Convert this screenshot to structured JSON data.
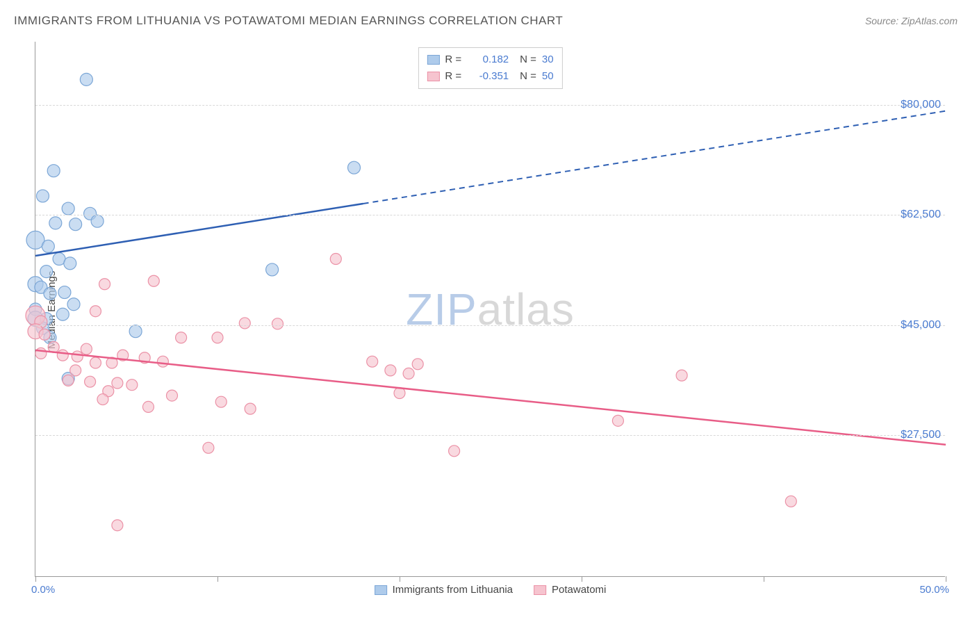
{
  "title": "IMMIGRANTS FROM LITHUANIA VS POTAWATOMI MEDIAN EARNINGS CORRELATION CHART",
  "source": "Source: ZipAtlas.com",
  "y_axis_title": "Median Earnings",
  "watermark_zip": "ZIP",
  "watermark_atlas": "atlas",
  "chart": {
    "type": "scatter",
    "xlim": [
      0,
      50
    ],
    "ylim": [
      5000,
      90000
    ],
    "x_tick_positions": [
      0,
      10,
      20,
      30,
      40,
      50
    ],
    "y_ticks": [
      {
        "v": 27500,
        "label": "$27,500"
      },
      {
        "v": 45000,
        "label": "$45,000"
      },
      {
        "v": 62500,
        "label": "$62,500"
      },
      {
        "v": 80000,
        "label": "$80,000"
      }
    ],
    "x_start_label": "0.0%",
    "x_end_label": "50.0%",
    "background_color": "#ffffff",
    "grid_color": "#d8d8d8",
    "series": [
      {
        "name": "Immigrants from Lithuania",
        "color_fill": "#aecbeb",
        "color_stroke": "#7ba6d6",
        "trend_color": "#2e5fb3",
        "R": "0.182",
        "N": "30",
        "trend": {
          "x1": 0,
          "y1": 56000,
          "x2": 50,
          "y2": 79000,
          "solid_until_x": 18
        },
        "points": [
          {
            "x": 2.8,
            "y": 84000,
            "r": 9
          },
          {
            "x": 1.0,
            "y": 69500,
            "r": 9
          },
          {
            "x": 0.4,
            "y": 65500,
            "r": 9
          },
          {
            "x": 1.8,
            "y": 63500,
            "r": 9
          },
          {
            "x": 3.0,
            "y": 62700,
            "r": 9
          },
          {
            "x": 1.1,
            "y": 61200,
            "r": 9
          },
          {
            "x": 2.2,
            "y": 61000,
            "r": 9
          },
          {
            "x": 3.4,
            "y": 61500,
            "r": 9
          },
          {
            "x": 0.0,
            "y": 58500,
            "r": 13
          },
          {
            "x": 0.7,
            "y": 57500,
            "r": 9
          },
          {
            "x": 1.3,
            "y": 55500,
            "r": 9
          },
          {
            "x": 1.9,
            "y": 54800,
            "r": 9
          },
          {
            "x": 0.6,
            "y": 53500,
            "r": 9
          },
          {
            "x": 13.0,
            "y": 53800,
            "r": 9
          },
          {
            "x": 0.0,
            "y": 51500,
            "r": 11
          },
          {
            "x": 0.3,
            "y": 51000,
            "r": 9
          },
          {
            "x": 0.8,
            "y": 50000,
            "r": 9
          },
          {
            "x": 1.6,
            "y": 50200,
            "r": 9
          },
          {
            "x": 2.1,
            "y": 48300,
            "r": 9
          },
          {
            "x": 0.0,
            "y": 47500,
            "r": 9
          },
          {
            "x": 0.0,
            "y": 46000,
            "r": 11
          },
          {
            "x": 0.6,
            "y": 46000,
            "r": 9
          },
          {
            "x": 1.5,
            "y": 46700,
            "r": 9
          },
          {
            "x": 0.4,
            "y": 44500,
            "r": 9
          },
          {
            "x": 5.5,
            "y": 44000,
            "r": 9
          },
          {
            "x": 0.8,
            "y": 43000,
            "r": 9
          },
          {
            "x": 1.8,
            "y": 36500,
            "r": 9
          },
          {
            "x": 17.5,
            "y": 70000,
            "r": 9
          }
        ]
      },
      {
        "name": "Potawatomi",
        "color_fill": "#f6c4cf",
        "color_stroke": "#eb91a6",
        "trend_color": "#e85d87",
        "R": "-0.351",
        "N": "50",
        "trend": {
          "x1": 0,
          "y1": 41000,
          "x2": 50,
          "y2": 26000,
          "solid_until_x": 50
        },
        "points": [
          {
            "x": 16.5,
            "y": 55500,
            "r": 8
          },
          {
            "x": 3.8,
            "y": 51500,
            "r": 8
          },
          {
            "x": 6.5,
            "y": 52000,
            "r": 8
          },
          {
            "x": 3.3,
            "y": 47200,
            "r": 8
          },
          {
            "x": 0.0,
            "y": 46500,
            "r": 14
          },
          {
            "x": 0.3,
            "y": 45500,
            "r": 9
          },
          {
            "x": 11.5,
            "y": 45300,
            "r": 8
          },
          {
            "x": 13.3,
            "y": 45200,
            "r": 8
          },
          {
            "x": 0.0,
            "y": 44000,
            "r": 11
          },
          {
            "x": 0.5,
            "y": 43500,
            "r": 8
          },
          {
            "x": 8.0,
            "y": 43000,
            "r": 8
          },
          {
            "x": 10.0,
            "y": 43000,
            "r": 8
          },
          {
            "x": 1.0,
            "y": 41500,
            "r": 8
          },
          {
            "x": 2.8,
            "y": 41200,
            "r": 8
          },
          {
            "x": 0.3,
            "y": 40500,
            "r": 8
          },
          {
            "x": 1.5,
            "y": 40200,
            "r": 8
          },
          {
            "x": 2.3,
            "y": 40000,
            "r": 8
          },
          {
            "x": 4.8,
            "y": 40200,
            "r": 8
          },
          {
            "x": 6.0,
            "y": 39800,
            "r": 8
          },
          {
            "x": 3.3,
            "y": 39000,
            "r": 8
          },
          {
            "x": 4.2,
            "y": 39000,
            "r": 8
          },
          {
            "x": 7.0,
            "y": 39200,
            "r": 8
          },
          {
            "x": 18.5,
            "y": 39200,
            "r": 8
          },
          {
            "x": 21.0,
            "y": 38800,
            "r": 8
          },
          {
            "x": 2.2,
            "y": 37800,
            "r": 8
          },
          {
            "x": 19.5,
            "y": 37800,
            "r": 8
          },
          {
            "x": 20.5,
            "y": 37300,
            "r": 8
          },
          {
            "x": 35.5,
            "y": 37000,
            "r": 8
          },
          {
            "x": 1.8,
            "y": 36200,
            "r": 8
          },
          {
            "x": 3.0,
            "y": 36000,
            "r": 8
          },
          {
            "x": 4.5,
            "y": 35800,
            "r": 8
          },
          {
            "x": 5.3,
            "y": 35500,
            "r": 8
          },
          {
            "x": 4.0,
            "y": 34500,
            "r": 8
          },
          {
            "x": 20.0,
            "y": 34200,
            "r": 8
          },
          {
            "x": 7.5,
            "y": 33800,
            "r": 8
          },
          {
            "x": 3.7,
            "y": 33200,
            "r": 8
          },
          {
            "x": 10.2,
            "y": 32800,
            "r": 8
          },
          {
            "x": 6.2,
            "y": 32000,
            "r": 8
          },
          {
            "x": 11.8,
            "y": 31700,
            "r": 8
          },
          {
            "x": 32.0,
            "y": 29800,
            "r": 8
          },
          {
            "x": 9.5,
            "y": 25500,
            "r": 8
          },
          {
            "x": 23.0,
            "y": 25000,
            "r": 8
          },
          {
            "x": 41.5,
            "y": 17000,
            "r": 8
          },
          {
            "x": 4.5,
            "y": 13200,
            "r": 8
          }
        ]
      }
    ]
  },
  "legend_bottom": [
    {
      "label": "Immigrants from Lithuania",
      "fill": "#aecbeb",
      "stroke": "#7ba6d6"
    },
    {
      "label": "Potawatomi",
      "fill": "#f6c4cf",
      "stroke": "#eb91a6"
    }
  ]
}
